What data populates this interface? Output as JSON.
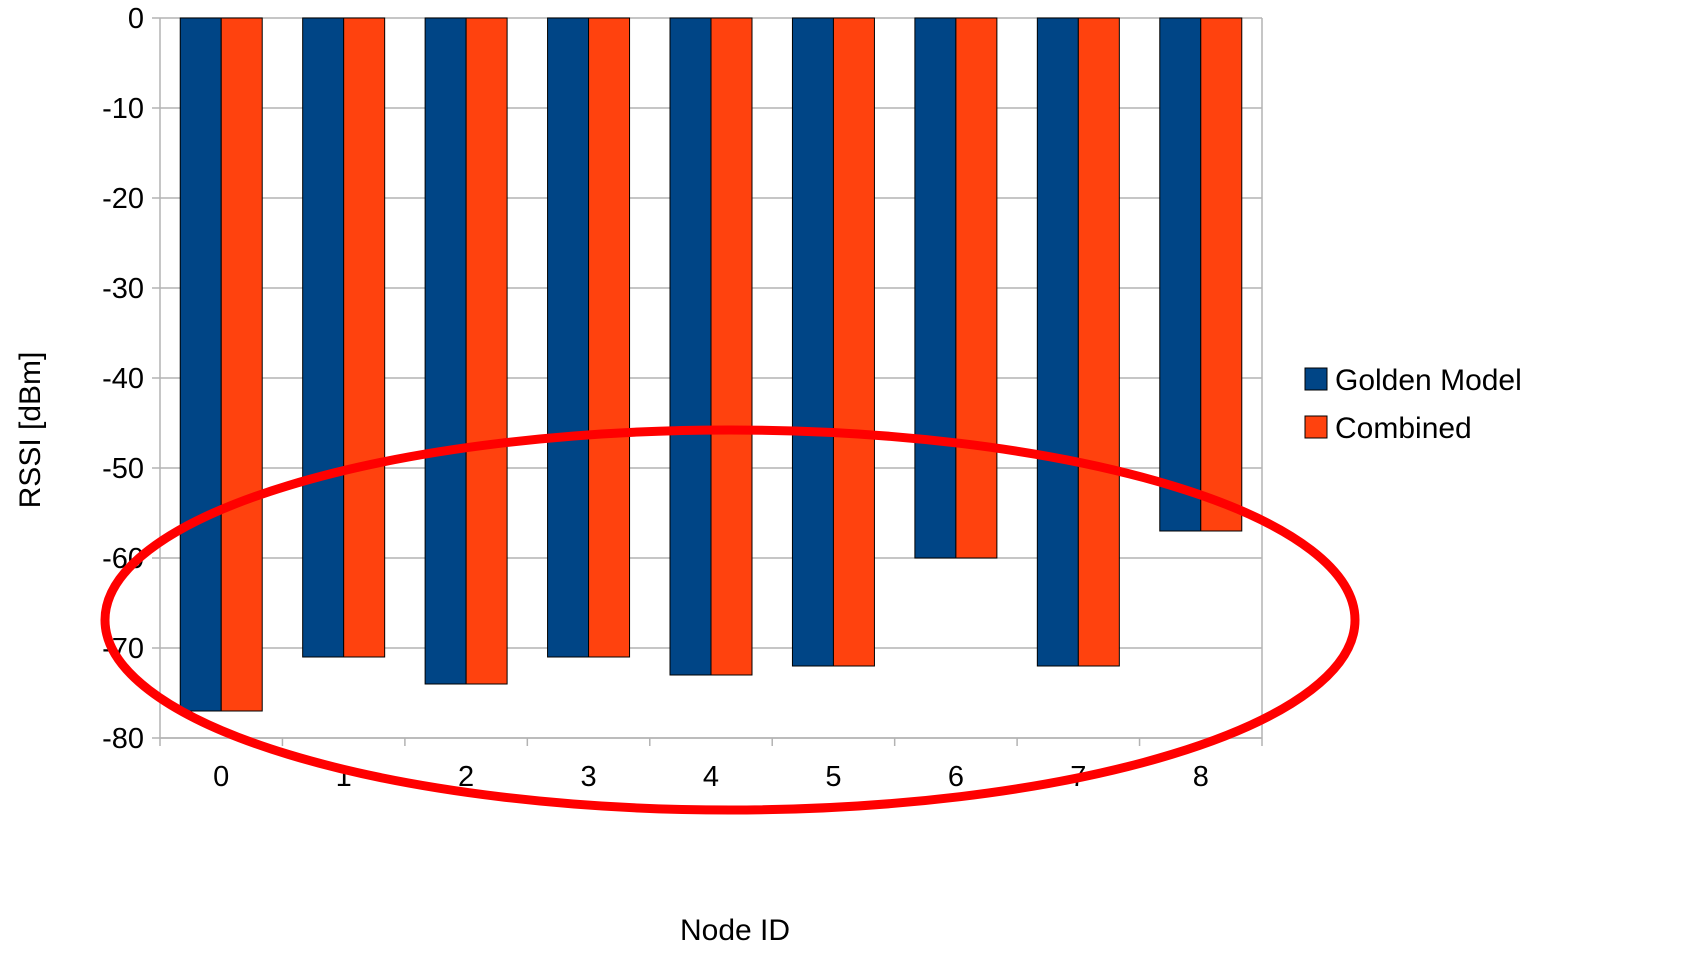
{
  "chart_data": {
    "type": "bar",
    "title": "",
    "xlabel": "Node ID",
    "ylabel": "RSSI [dBm]",
    "categories": [
      "0",
      "1",
      "2",
      "3",
      "4",
      "5",
      "6",
      "7",
      "8"
    ],
    "series": [
      {
        "name": "Golden Model",
        "color": "#004586",
        "values": [
          -77,
          -71,
          -74,
          -71,
          -73,
          -72,
          -60,
          -72,
          -57
        ]
      },
      {
        "name": "Combined",
        "color": "#ff420e",
        "values": [
          -77,
          -71,
          -74,
          -71,
          -73,
          -72,
          -60,
          -72,
          -57
        ]
      }
    ],
    "ylim": [
      -80,
      0
    ],
    "yticks": [
      0,
      -10,
      -20,
      -30,
      -40,
      -50,
      -60,
      -70,
      -80
    ],
    "grid": true,
    "legend": "right",
    "annotation": {
      "type": "ellipse",
      "color": "#ff0000",
      "label": ""
    }
  }
}
